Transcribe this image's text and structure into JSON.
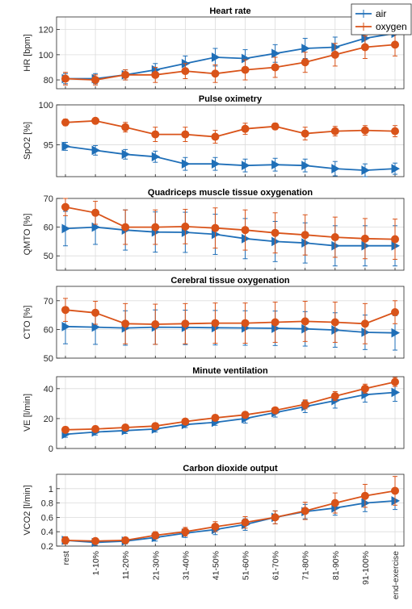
{
  "legend": {
    "location": "top-right",
    "entries": [
      {
        "name": "air",
        "color": "#1f6fb8",
        "marker": "triangle-right"
      },
      {
        "name": "oxygen",
        "color": "#d95319",
        "marker": "circle"
      }
    ]
  },
  "colors": {
    "air": "#1f6fb8",
    "oxygen": "#d95319",
    "grid": "#dcdcdc",
    "axis": "#262626"
  },
  "chart_data": [
    {
      "type": "line",
      "title": "Heart rate",
      "ylabel": "HR [bpm]",
      "ylim": [
        73,
        130
      ],
      "yticks": [
        80,
        100,
        120
      ],
      "grid": true,
      "categories": [
        "rest",
        "1-10%",
        "11-20%",
        "21-30%",
        "31-40%",
        "41-50%",
        "51-60%",
        "61-70%",
        "71-80%",
        "81-90%",
        "91-100%",
        "end-exercise"
      ],
      "series": [
        {
          "name": "air",
          "values": [
            81,
            81,
            84,
            88,
            93,
            98,
            97,
            101,
            105,
            106,
            113,
            117
          ],
          "err": [
            4,
            4,
            4,
            5,
            6,
            7,
            7,
            7,
            8,
            8,
            8,
            8
          ]
        },
        {
          "name": "oxygen",
          "values": [
            81,
            80,
            84,
            84,
            87,
            85,
            88,
            90,
            94,
            100,
            106,
            108
          ],
          "err": [
            5,
            4,
            4,
            6,
            6,
            7,
            8,
            8,
            8,
            9,
            9,
            9
          ]
        }
      ]
    },
    {
      "type": "line",
      "title": "Pulse oximetry",
      "ylabel": "SpO2 [%]",
      "ylim": [
        91,
        100
      ],
      "yticks": [
        90,
        95,
        100
      ],
      "grid": true,
      "categories": [
        "rest",
        "1-10%",
        "11-20%",
        "21-30%",
        "31-40%",
        "41-50%",
        "51-60%",
        "61-70%",
        "71-80%",
        "81-90%",
        "91-100%",
        "end-exercise"
      ],
      "series": [
        {
          "name": "air",
          "values": [
            94.8,
            94.3,
            93.8,
            93.5,
            92.6,
            92.6,
            92.4,
            92.5,
            92.4,
            92.0,
            91.8,
            92.0
          ],
          "err": [
            0.5,
            0.6,
            0.6,
            0.7,
            0.8,
            0.8,
            0.8,
            0.8,
            0.8,
            0.9,
            0.8,
            0.7
          ]
        },
        {
          "name": "oxygen",
          "values": [
            97.8,
            98.0,
            97.2,
            96.3,
            96.3,
            96.0,
            97.0,
            97.3,
            96.4,
            96.7,
            96.8,
            96.7
          ],
          "err": [
            0.4,
            0.3,
            0.6,
            0.9,
            0.9,
            0.8,
            0.7,
            0.4,
            0.8,
            0.6,
            0.6,
            0.7
          ]
        }
      ]
    },
    {
      "type": "line",
      "title": "Quadriceps muscle tissue oxygenation",
      "ylabel": "QMTO [%]",
      "ylim": [
        45,
        70
      ],
      "yticks": [
        50,
        60,
        70
      ],
      "grid": true,
      "categories": [
        "rest",
        "1-10%",
        "11-20%",
        "21-30%",
        "31-40%",
        "41-50%",
        "51-60%",
        "61-70%",
        "71-80%",
        "81-90%",
        "91-100%",
        "end-exercise"
      ],
      "series": [
        {
          "name": "air",
          "values": [
            59.5,
            60.0,
            59.0,
            58.3,
            58.2,
            57.5,
            56.0,
            55.0,
            54.5,
            53.5,
            53.5,
            53.5
          ],
          "err": [
            6,
            6,
            7,
            7,
            7,
            7,
            7,
            7,
            7,
            7,
            7,
            7
          ]
        },
        {
          "name": "oxygen",
          "values": [
            67.0,
            65.0,
            60.0,
            60.0,
            60.2,
            59.7,
            59.0,
            58.0,
            57.3,
            56.5,
            56.0,
            55.8
          ],
          "err": [
            3,
            4,
            6,
            6,
            6,
            7,
            7,
            7,
            7,
            7,
            7,
            7
          ]
        }
      ]
    },
    {
      "type": "line",
      "title": "Cerebral tissue oxygenation",
      "ylabel": "CTO [%]",
      "ylim": [
        50,
        75
      ],
      "yticks": [
        50,
        60,
        70
      ],
      "grid": true,
      "categories": [
        "rest",
        "1-10%",
        "11-20%",
        "21-30%",
        "31-40%",
        "41-50%",
        "51-60%",
        "61-70%",
        "71-80%",
        "81-90%",
        "91-100%",
        "end-exercise"
      ],
      "series": [
        {
          "name": "air",
          "values": [
            61.0,
            60.8,
            60.5,
            60.8,
            60.7,
            60.6,
            60.5,
            60.4,
            60.2,
            59.8,
            59.0,
            58.8
          ],
          "err": [
            6,
            6,
            6,
            6,
            6,
            6,
            6,
            6,
            6,
            6,
            6,
            6
          ]
        },
        {
          "name": "oxygen",
          "values": [
            66.8,
            65.8,
            62.0,
            61.8,
            62.0,
            62.2,
            62.2,
            62.5,
            62.8,
            62.5,
            62.0,
            66.0
          ],
          "err": [
            4,
            4,
            7,
            7,
            7,
            7,
            7,
            7,
            7,
            7,
            7,
            4
          ]
        }
      ]
    },
    {
      "type": "line",
      "title": "Minute ventilation",
      "ylabel": "VE [l/min]",
      "ylim": [
        0,
        48
      ],
      "yticks": [
        0,
        20,
        40
      ],
      "grid": true,
      "categories": [
        "rest",
        "1-10%",
        "11-20%",
        "21-30%",
        "31-40%",
        "41-50%",
        "51-60%",
        "61-70%",
        "71-80%",
        "81-90%",
        "91-100%",
        "end-exercise"
      ],
      "series": [
        {
          "name": "air",
          "values": [
            9.5,
            11,
            12,
            13,
            16,
            17.5,
            20,
            24,
            28,
            32,
            36,
            37.5
          ],
          "err": [
            2,
            2,
            2,
            2,
            2,
            2,
            3,
            3,
            4,
            5,
            5,
            6
          ]
        },
        {
          "name": "oxygen",
          "values": [
            12.5,
            13,
            14,
            15,
            18,
            20.5,
            22.5,
            25.5,
            29.5,
            35,
            40,
            44.5
          ],
          "err": [
            2,
            2,
            2,
            2,
            2,
            2,
            2,
            2,
            3,
            3,
            3,
            3
          ]
        }
      ]
    },
    {
      "type": "line",
      "title": "Carbon dioxide output",
      "ylabel": "VCO2 [l/min]",
      "ylim": [
        0.2,
        1.2
      ],
      "yticks": [
        0.2,
        0.4,
        0.6,
        0.8,
        1
      ],
      "grid": true,
      "categories": [
        "rest",
        "1-10%",
        "11-20%",
        "21-30%",
        "31-40%",
        "41-50%",
        "51-60%",
        "61-70%",
        "71-80%",
        "81-90%",
        "91-100%",
        "end-exercise"
      ],
      "series": [
        {
          "name": "air",
          "values": [
            0.28,
            0.25,
            0.27,
            0.32,
            0.38,
            0.43,
            0.5,
            0.6,
            0.68,
            0.73,
            0.8,
            0.83
          ],
          "err": [
            0.05,
            0.04,
            0.04,
            0.05,
            0.06,
            0.07,
            0.08,
            0.09,
            0.1,
            0.1,
            0.12,
            0.12
          ]
        },
        {
          "name": "oxygen",
          "values": [
            0.28,
            0.27,
            0.28,
            0.35,
            0.4,
            0.47,
            0.53,
            0.6,
            0.69,
            0.8,
            0.9,
            0.97
          ],
          "err": [
            0.05,
            0.04,
            0.04,
            0.05,
            0.06,
            0.07,
            0.08,
            0.09,
            0.12,
            0.14,
            0.16,
            0.2
          ]
        }
      ]
    }
  ]
}
